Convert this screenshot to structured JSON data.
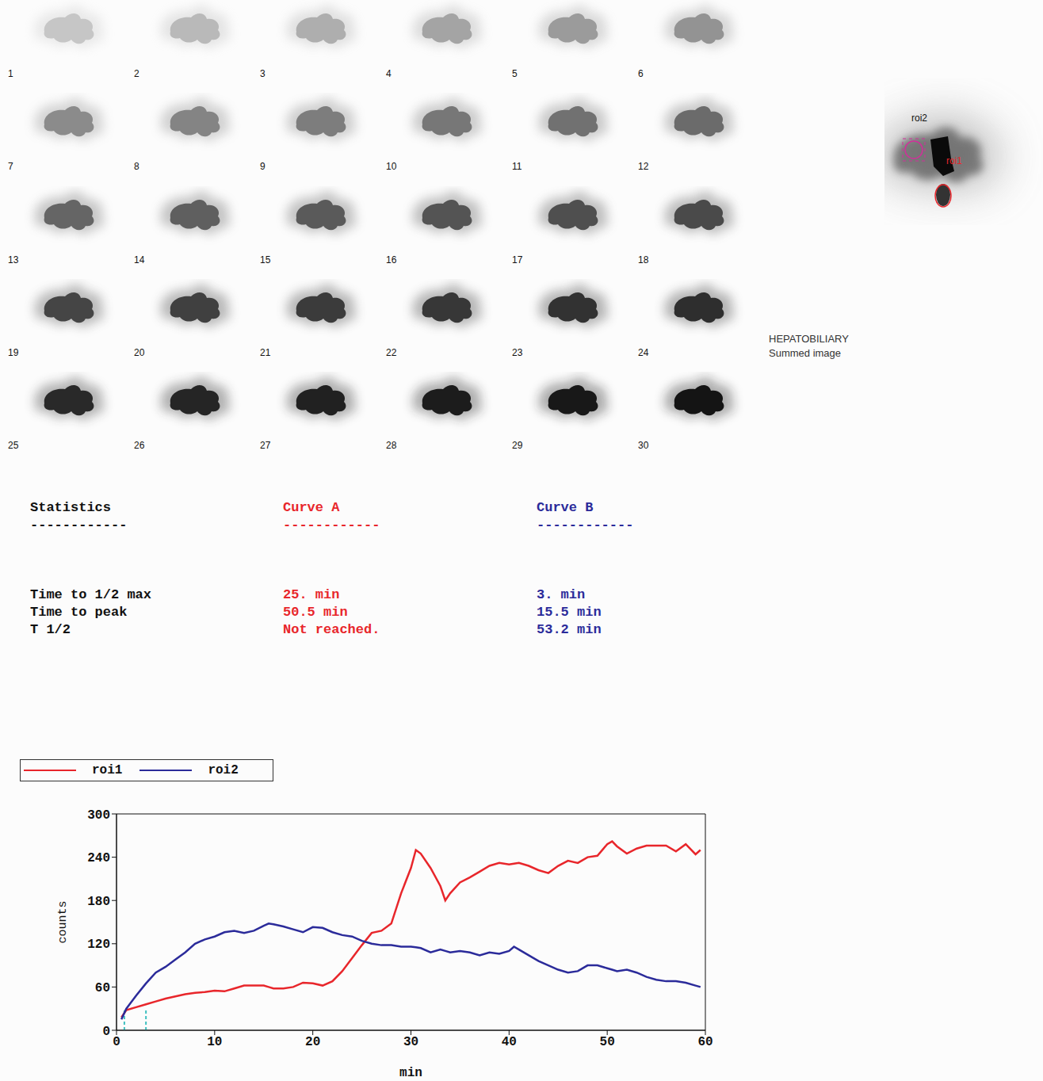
{
  "frames": {
    "labels": [
      1,
      2,
      3,
      4,
      5,
      6,
      7,
      8,
      9,
      10,
      11,
      12,
      13,
      14,
      15,
      16,
      17,
      18,
      19,
      20,
      21,
      22,
      23,
      24,
      25,
      26,
      27,
      28,
      29,
      30
    ]
  },
  "summed_image": {
    "roi_labels": [
      {
        "text": "roi2",
        "color": "#111111"
      },
      {
        "text": "roi1",
        "color": "#e8262b"
      }
    ],
    "caption": [
      "HEPATOBILIARY",
      "Summed image"
    ]
  },
  "statistics": {
    "title": "Statistics",
    "rule": "------------",
    "columns": [
      {
        "name": "Curve A",
        "color": "#e8262b"
      },
      {
        "name": "Curve B",
        "color": "#2b2b9a"
      }
    ],
    "rows": [
      {
        "label": "Time to 1/2 max",
        "values": [
          "25. min",
          "3. min"
        ]
      },
      {
        "label": "Time to peak",
        "values": [
          "50.5 min",
          "15.5 min"
        ]
      },
      {
        "label": "T 1/2",
        "values": [
          "Not reached.",
          "53.2 min"
        ]
      }
    ]
  },
  "chart_data": {
    "type": "line",
    "x_label": "min",
    "y_label": "counts",
    "x": [
      0.5,
      1,
      2,
      3,
      4,
      5,
      6,
      7,
      8,
      9,
      10,
      11,
      12,
      13,
      14,
      15,
      15.5,
      16,
      17,
      18,
      19,
      20,
      21,
      22,
      23,
      24,
      25,
      26,
      27,
      28,
      29,
      30,
      30.5,
      31,
      32,
      33,
      33.5,
      34,
      35,
      36,
      37,
      38,
      39,
      40,
      40.5,
      41,
      42,
      43,
      44,
      45,
      46,
      47,
      48,
      49,
      50,
      50.5,
      51,
      52,
      53,
      54,
      55,
      56,
      57,
      58,
      59,
      59.5
    ],
    "series": [
      {
        "name": "roi1",
        "color": "#e8262b",
        "values": [
          18,
          28,
          32,
          36,
          40,
          44,
          47,
          50,
          52,
          53,
          55,
          54,
          58,
          62,
          62,
          62,
          60,
          58,
          58,
          60,
          66,
          65,
          62,
          68,
          82,
          100,
          118,
          135,
          138,
          148,
          190,
          225,
          250,
          245,
          225,
          200,
          180,
          190,
          205,
          212,
          220,
          228,
          232,
          230,
          231,
          232,
          228,
          222,
          218,
          228,
          235,
          232,
          240,
          242,
          258,
          262,
          255,
          245,
          252,
          256,
          256,
          256,
          248,
          258,
          244,
          250
        ]
      },
      {
        "name": "roi2",
        "color": "#2b2b9a",
        "values": [
          15,
          30,
          48,
          65,
          80,
          88,
          98,
          108,
          120,
          126,
          130,
          136,
          138,
          135,
          138,
          145,
          148,
          147,
          144,
          140,
          136,
          143,
          142,
          136,
          132,
          130,
          124,
          120,
          118,
          118,
          116,
          116,
          115,
          114,
          108,
          112,
          110,
          108,
          110,
          108,
          104,
          108,
          106,
          110,
          116,
          112,
          104,
          96,
          90,
          84,
          80,
          82,
          90,
          90,
          86,
          84,
          82,
          84,
          80,
          74,
          70,
          68,
          68,
          66,
          62,
          60
        ]
      }
    ],
    "xlim": [
      0,
      60
    ],
    "xticks": [
      0,
      10,
      20,
      30,
      40,
      50,
      60
    ],
    "ylim": [
      0,
      300
    ],
    "yticks": [
      0,
      60,
      120,
      180,
      240,
      300
    ],
    "legend": "top-left",
    "reference_lines": [
      {
        "x": 0.8,
        "y": 30,
        "color": "#40c0c0"
      },
      {
        "x": 3,
        "y": 30,
        "color": "#40c0c0"
      }
    ]
  }
}
